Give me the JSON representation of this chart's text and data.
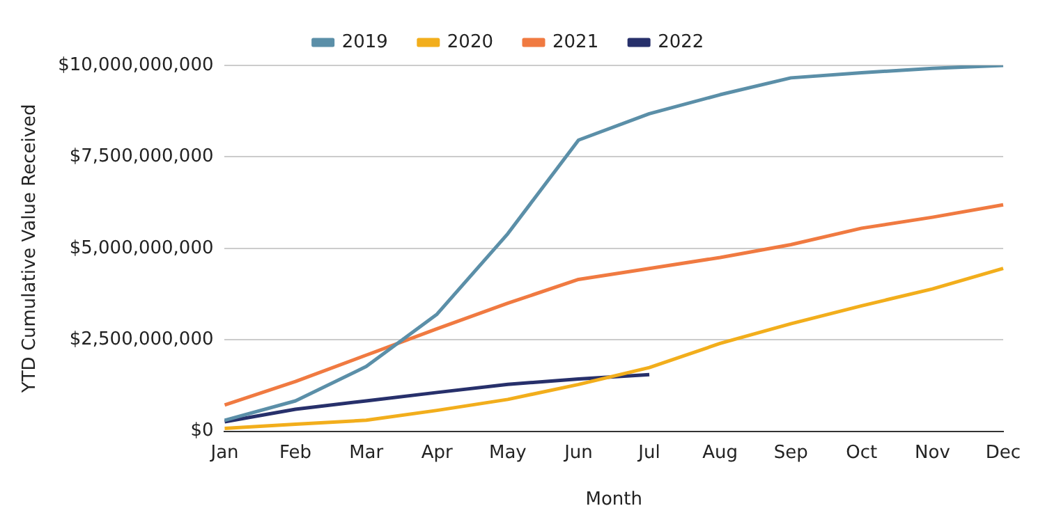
{
  "chart_data": {
    "type": "line",
    "xlabel": "Month",
    "ylabel": "YTD Cumulative Value Received",
    "categories": [
      "Jan",
      "Feb",
      "Mar",
      "Apr",
      "May",
      "Jun",
      "Jul",
      "Aug",
      "Sep",
      "Oct",
      "Nov",
      "Dec"
    ],
    "series": [
      {
        "name": "2019",
        "color": "#5b8fa8",
        "values": [
          300000000,
          830000000,
          1770000000,
          3200000000,
          5400000000,
          7960000000,
          8680000000,
          9200000000,
          9660000000,
          9800000000,
          9920000000,
          10000000000
        ]
      },
      {
        "name": "2020",
        "color": "#f2ae1c",
        "values": [
          80000000,
          190000000,
          300000000,
          570000000,
          870000000,
          1280000000,
          1740000000,
          2400000000,
          2940000000,
          3430000000,
          3890000000,
          4450000000
        ]
      },
      {
        "name": "2021",
        "color": "#f07a41",
        "values": [
          720000000,
          1360000000,
          2080000000,
          2800000000,
          3500000000,
          4150000000,
          4450000000,
          4750000000,
          5100000000,
          5550000000,
          5850000000,
          6190000000
        ]
      },
      {
        "name": "2022",
        "color": "#27306b",
        "values": [
          260000000,
          600000000,
          830000000,
          1060000000,
          1280000000,
          1430000000,
          1550000000,
          null,
          null,
          null,
          null,
          null
        ]
      }
    ],
    "ylim": [
      0,
      10000000000
    ],
    "yticks": [
      {
        "value": 0,
        "label": "$0"
      },
      {
        "value": 2500000000,
        "label": "$2,500,000,000"
      },
      {
        "value": 5000000000,
        "label": "$5,000,000,000"
      },
      {
        "value": 7500000000,
        "label": "$7,500,000,000"
      },
      {
        "value": 10000000000,
        "label": "$10,000,000,000"
      }
    ],
    "grid": "y",
    "legend": "top",
    "marker": "none",
    "line_style": "solid"
  }
}
